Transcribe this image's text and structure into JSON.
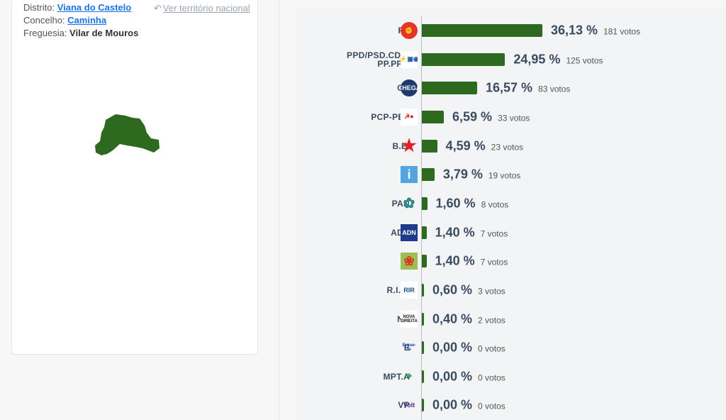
{
  "location": {
    "district_label": "Distrito:",
    "district": "Viana do Castelo",
    "council_label": "Concelho:",
    "council": "Caminha",
    "parish_label": "Freguesia:",
    "parish": "Vilar de Mouros",
    "national_link": "Ver território nacional"
  },
  "colors": {
    "bar": "#2d6a1f",
    "link": "#1a73e8"
  },
  "chart_data": {
    "type": "bar",
    "categories": [
      "PS",
      "PPD/PSD.CDS-PP.PPM",
      "CH",
      "PCP-PEV",
      "B.E.",
      "IL",
      "PAN",
      "ADN",
      "L",
      "R.I.R.",
      "ND",
      "E",
      "MPT.A",
      "VP"
    ],
    "values": [
      36.13,
      24.95,
      16.57,
      6.59,
      4.59,
      3.79,
      1.6,
      1.4,
      1.4,
      0.6,
      0.4,
      0.0,
      0.0,
      0.0
    ],
    "pct_labels": [
      "36,13 %",
      "24,95 %",
      "16,57 %",
      "6,59 %",
      "4,59 %",
      "3,79 %",
      "1,60 %",
      "1,40 %",
      "1,40 %",
      "0,60 %",
      "0,40 %",
      "0,00 %",
      "0,00 %",
      "0,00 %"
    ],
    "votes": [
      "181 votos",
      "125 votos",
      "83 votos",
      "33 votos",
      "23 votos",
      "19 votos",
      "8 votos",
      "7 votos",
      "7 votos",
      "3 votos",
      "2 votos",
      "0 votos",
      "0 votos",
      "0 votos"
    ],
    "logos": [
      "ps-logo",
      "ad-logo",
      "chega-logo",
      "cdu-logo",
      "be-logo",
      "il-logo",
      "pan-logo",
      "adn-logo",
      "livre-logo",
      "rir-logo",
      "nova-direita-logo",
      "ergue-te-logo",
      "mpt-alianca-logo",
      "volt-logo"
    ],
    "logo_text": [
      "",
      "",
      "CHEGA",
      "",
      "",
      "i",
      "",
      "ADN",
      "",
      "RIR",
      "NOVA DIREITA",
      "Ergue-te",
      "",
      "Volt"
    ]
  }
}
